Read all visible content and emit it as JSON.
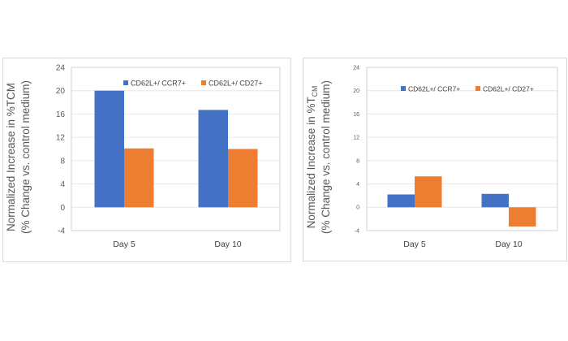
{
  "chart_data": [
    {
      "type": "bar",
      "categories": [
        "Day 5",
        "Day 10"
      ],
      "series": [
        {
          "name": "CD62L+/ CCR7+",
          "values": [
            20.0,
            16.7
          ],
          "color": "#4472C4"
        },
        {
          "name": "CD62L+/ CD27+",
          "values": [
            10.1,
            10.0
          ],
          "color": "#ED7D31"
        }
      ],
      "ylabel_line1": "Normalized Increase in %TCM",
      "ylabel_line1_sub": "",
      "ylabel_line2": "(% Change vs. control medium)",
      "ylim": [
        -4,
        24
      ],
      "yticks": [
        "24",
        "20",
        "16",
        "12",
        "8",
        "4",
        "0",
        "-4"
      ],
      "grid": true,
      "legend": "top"
    },
    {
      "type": "bar",
      "categories": [
        "Day 5",
        "Day 10"
      ],
      "series": [
        {
          "name": "CD62L+/ CCR7+",
          "values": [
            2.2,
            2.3
          ],
          "color": "#4472C4"
        },
        {
          "name": "CD62L+/ CD27+",
          "values": [
            5.3,
            -3.3
          ],
          "color": "#ED7D31"
        }
      ],
      "ylabel_line1": "Normalized Increase in %T",
      "ylabel_line1_sub": "CM",
      "ylabel_line2": "(% Change vs. control medium)",
      "ylim": [
        -4,
        24
      ],
      "yticks": [
        "24",
        "20",
        "16",
        "12",
        "8",
        "4",
        "0",
        "-4"
      ],
      "grid": true,
      "legend": "top"
    }
  ]
}
